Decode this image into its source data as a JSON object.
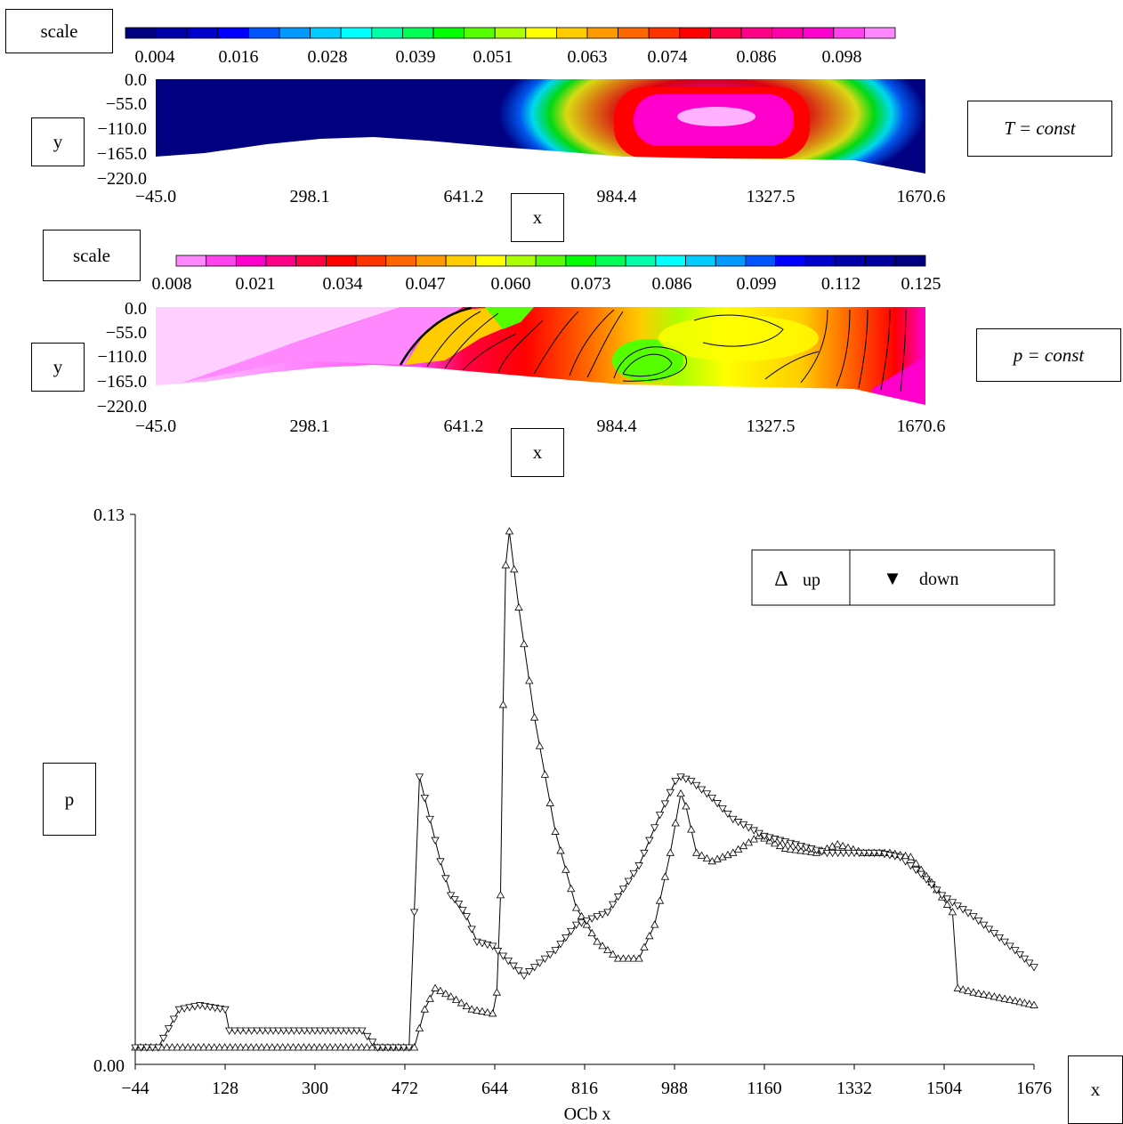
{
  "boxes": {
    "scale1": "scale",
    "y1": "y",
    "x1": "x",
    "cond1": "T = const",
    "scale2": "scale",
    "y2": "y",
    "x2": "x",
    "cond2": "p = const",
    "p": "p",
    "x3": "x"
  },
  "chart_data": [
    {
      "type": "heatmap",
      "title": "",
      "legend_box": "scale",
      "colorbar": {
        "ticks": [
          "0.004",
          "0.016",
          "0.028",
          "0.039",
          "0.051",
          "0.063",
          "0.074",
          "0.086",
          "0.098"
        ],
        "colors": [
          "#000080",
          "#0000a8",
          "#0000cc",
          "#0000ff",
          "#0055ff",
          "#0099ff",
          "#00ccff",
          "#00ffff",
          "#00ffaa",
          "#00ff55",
          "#00ff00",
          "#55ff00",
          "#aaff00",
          "#ffff00",
          "#ffcc00",
          "#ff9900",
          "#ff6600",
          "#ff3300",
          "#ff0000",
          "#ff0044",
          "#ff0088",
          "#ff00aa",
          "#ff00cc",
          "#ff44ee",
          "#ff88ff"
        ]
      },
      "xlabel": "x",
      "ylabel": "y",
      "xticks": [
        "−45.0",
        "298.1",
        "641.2",
        "984.4",
        "1327.5",
        "1670.6"
      ],
      "yticks": [
        "0.0",
        "−55.0",
        "−110.0",
        "−165.0",
        "−220.0"
      ],
      "xlim": [
        -45.0,
        1670.6
      ],
      "ylim": [
        -220.0,
        0.0
      ],
      "annotation": "T = const"
    },
    {
      "type": "heatmap",
      "title": "",
      "legend_box": "scale",
      "colorbar": {
        "ticks": [
          "0.008",
          "0.021",
          "0.034",
          "0.047",
          "0.060",
          "0.073",
          "0.086",
          "0.099",
          "0.112",
          "0.125"
        ],
        "colors": [
          "#ff88ff",
          "#ff44ee",
          "#ff00cc",
          "#ff0088",
          "#ff0044",
          "#ff0000",
          "#ff3300",
          "#ff6600",
          "#ff9900",
          "#ffcc00",
          "#ffff00",
          "#aaff00",
          "#55ff00",
          "#00ff00",
          "#00ff55",
          "#00ffaa",
          "#00ffff",
          "#00ccff",
          "#0099ff",
          "#0055ff",
          "#0000ff",
          "#0000cc",
          "#0000a8",
          "#0000a0",
          "#000080"
        ]
      },
      "xlabel": "x",
      "ylabel": "y",
      "xticks": [
        "−45.0",
        "298.1",
        "641.2",
        "984.4",
        "1327.5",
        "1670.6"
      ],
      "yticks": [
        "0.0",
        "−55.0",
        "−110.0",
        "−165.0",
        "−220.0"
      ],
      "xlim": [
        -45.0,
        1670.6
      ],
      "ylim": [
        -220.0,
        0.0
      ],
      "annotation": "p = const"
    },
    {
      "type": "line",
      "title": "",
      "xlabel": "OCb x",
      "ylabel": "p",
      "xticks": [
        "−44",
        "128",
        "300",
        "472",
        "644",
        "816",
        "988",
        "1160",
        "1332",
        "1504",
        "1676"
      ],
      "yticks": [
        "0.00",
        "0.13"
      ],
      "xlim": [
        -44,
        1676
      ],
      "ylim": [
        0.0,
        0.13
      ],
      "legend": [
        {
          "marker": "Δ",
          "label": "up"
        },
        {
          "marker": "▼",
          "label": "down"
        }
      ],
      "series": [
        {
          "name": "up",
          "x": [
            -44,
            490,
            510,
            530,
            560,
            600,
            640,
            648,
            655,
            660,
            665,
            672,
            690,
            720,
            760,
            800,
            840,
            880,
            920,
            950,
            980,
            1000,
            1010,
            1030,
            1060,
            1100,
            1150,
            1200,
            1260,
            1300,
            1350,
            1400,
            1440,
            1480,
            1520,
            1530,
            1560,
            1600,
            1640,
            1676
          ],
          "y": [
            0.004,
            0.004,
            0.013,
            0.018,
            0.016,
            0.013,
            0.012,
            0.017,
            0.04,
            0.085,
            0.118,
            0.126,
            0.108,
            0.082,
            0.055,
            0.037,
            0.029,
            0.025,
            0.025,
            0.033,
            0.05,
            0.064,
            0.061,
            0.05,
            0.048,
            0.05,
            0.054,
            0.051,
            0.05,
            0.052,
            0.05,
            0.05,
            0.049,
            0.043,
            0.036,
            0.018,
            0.017,
            0.016,
            0.015,
            0.014
          ]
        },
        {
          "name": "down",
          "x": [
            -44,
            0,
            40,
            80,
            128,
            136,
            200,
            300,
            390,
            420,
            480,
            500,
            520,
            540,
            560,
            575,
            590,
            610,
            640,
            700,
            760,
            800,
            860,
            920,
            960,
            990,
            1000,
            1020,
            1060,
            1100,
            1160,
            1220,
            1280,
            1332,
            1380,
            1420,
            1460,
            1500,
            1560,
            1600,
            1640,
            1676
          ],
          "y": [
            0.004,
            0.004,
            0.013,
            0.014,
            0.013,
            0.008,
            0.008,
            0.008,
            0.008,
            0.004,
            0.004,
            0.068,
            0.058,
            0.048,
            0.04,
            0.038,
            0.035,
            0.029,
            0.028,
            0.021,
            0.027,
            0.033,
            0.036,
            0.047,
            0.059,
            0.067,
            0.068,
            0.067,
            0.063,
            0.058,
            0.054,
            0.052,
            0.05,
            0.05,
            0.05,
            0.049,
            0.045,
            0.04,
            0.035,
            0.031,
            0.027,
            0.023
          ]
        }
      ]
    }
  ]
}
